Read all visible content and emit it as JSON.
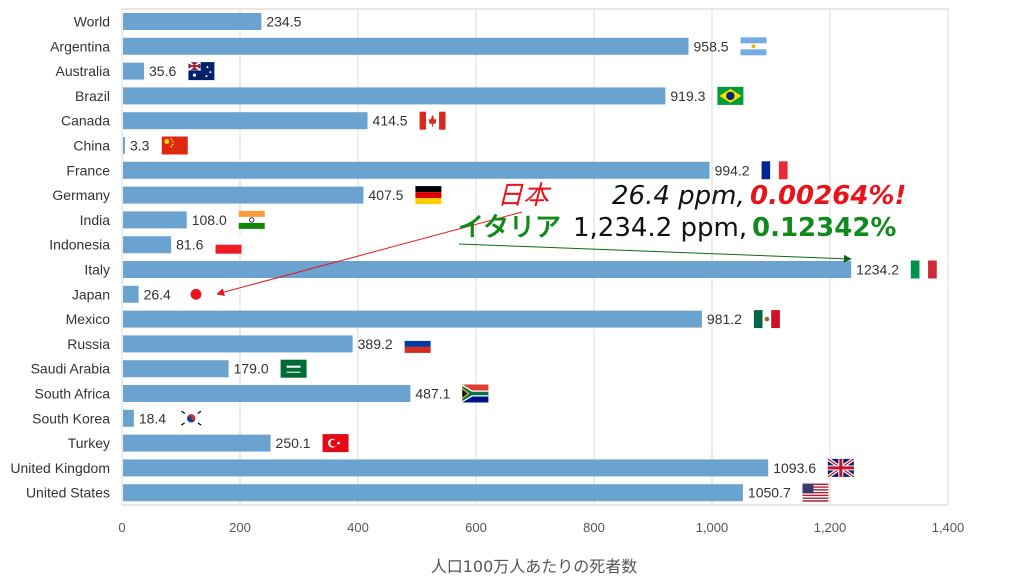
{
  "chart_data": {
    "type": "bar",
    "orientation": "horizontal",
    "categories": [
      "World",
      "Argentina",
      "Australia",
      "Brazil",
      "Canada",
      "China",
      "France",
      "Germany",
      "India",
      "Indonesia",
      "Italy",
      "Japan",
      "Mexico",
      "Russia",
      "Saudi Arabia",
      "South Africa",
      "South Korea",
      "Turkey",
      "United Kingdom",
      "United States"
    ],
    "values": [
      234.5,
      958.5,
      35.6,
      919.3,
      414.5,
      3.3,
      994.2,
      407.5,
      108.0,
      81.6,
      1234.2,
      26.4,
      981.2,
      389.2,
      179.0,
      487.1,
      18.4,
      250.1,
      1093.6,
      1050.7
    ],
    "value_labels": [
      "234.5",
      "958.5",
      "35.6",
      "919.3",
      "414.5",
      "3.3",
      "994.2",
      "407.5",
      "108.0",
      "81.6",
      "1234.2",
      "26.4",
      "981.2",
      "389.2",
      "179.0",
      "487.1",
      "18.4",
      "250.1",
      "1093.6",
      "1050.7"
    ],
    "xlabel": "人口100万人あたりの死者数",
    "xlim": [
      0,
      1400
    ],
    "xticks": [
      0,
      200,
      400,
      600,
      800,
      1000,
      1200,
      1400
    ],
    "xtick_labels": [
      "0",
      "200",
      "400",
      "600",
      "800",
      "1,000",
      "1,200",
      "1,400"
    ],
    "grid": "vertical",
    "bar_color": "#6aa3d0",
    "flags": [
      "",
      "argentina-flag",
      "australia-flag",
      "brazil-flag",
      "canada-flag",
      "china-flag",
      "france-flag",
      "germany-flag",
      "india-flag",
      "indonesia-flag",
      "italy-flag",
      "japan-flag",
      "mexico-flag",
      "russia-flag",
      "saudi-arabia-flag",
      "south-africa-flag",
      "south-korea-flag",
      "turkey-flag",
      "uk-flag",
      "usa-flag"
    ],
    "annotations": {
      "japan": {
        "name": "日本",
        "ppm": "26.4 ppm,",
        "pct": "0.00264%!",
        "target": "Japan",
        "color": "#e8141c",
        "ppm_color": "#111111"
      },
      "italy": {
        "name": "イタリア",
        "ppm": "1,234.2 ppm,",
        "pct": "0.12342%",
        "target": "Italy",
        "color": "#118a1c",
        "ppm_color": "#111111"
      }
    }
  }
}
